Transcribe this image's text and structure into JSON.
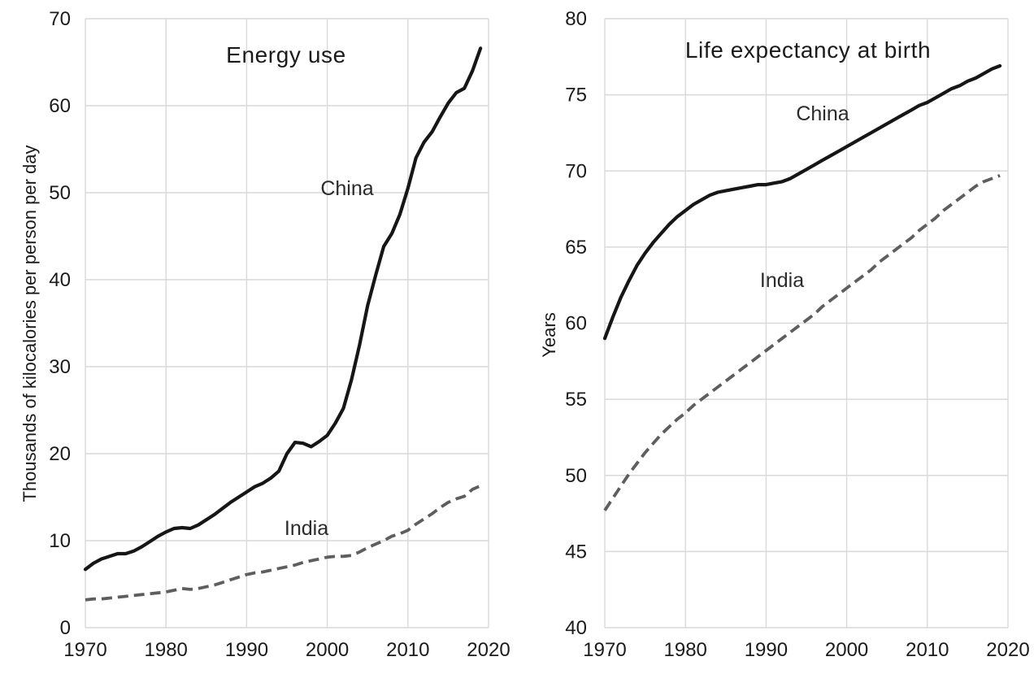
{
  "figure": {
    "background": "#ffffff",
    "grid_color": "#d9d9d9",
    "text_color": "#1b1b1b"
  },
  "chart_data": [
    {
      "id": "energy",
      "type": "line",
      "title": "Energy use",
      "ylabel": "Thousands of kilocalories per person per day",
      "xlabel": "",
      "xlim": [
        1970,
        2020
      ],
      "ylim": [
        0,
        70
      ],
      "x_ticks": [
        "1970",
        "1980",
        "1990",
        "2000",
        "2010",
        "2020"
      ],
      "y_ticks": [
        "0",
        "10",
        "20",
        "30",
        "40",
        "50",
        "60",
        "70"
      ],
      "grid": true,
      "legend_position": "inline-labels",
      "x_years": [
        1970,
        1971,
        1972,
        1973,
        1974,
        1975,
        1976,
        1977,
        1978,
        1979,
        1980,
        1981,
        1982,
        1983,
        1984,
        1985,
        1986,
        1987,
        1988,
        1989,
        1990,
        1991,
        1992,
        1993,
        1994,
        1995,
        1996,
        1997,
        1998,
        1999,
        2000,
        2001,
        2002,
        2003,
        2004,
        2005,
        2006,
        2007,
        2008,
        2009,
        2010,
        2011,
        2012,
        2013,
        2014,
        2015,
        2016,
        2017,
        2018,
        2019
      ],
      "series": [
        {
          "name": "China",
          "line_style": "solid",
          "color": "#161616",
          "values": [
            6.7,
            7.4,
            7.9,
            8.2,
            8.5,
            8.5,
            8.8,
            9.3,
            9.9,
            10.5,
            11.0,
            11.4,
            11.5,
            11.4,
            11.8,
            12.4,
            13.0,
            13.7,
            14.4,
            15.0,
            15.6,
            16.2,
            16.6,
            17.2,
            18.0,
            20.0,
            21.3,
            21.2,
            20.8,
            21.4,
            22.1,
            23.5,
            25.2,
            28.5,
            32.5,
            37.0,
            40.5,
            43.8,
            45.3,
            47.5,
            50.5,
            54.0,
            55.8,
            57.0,
            58.7,
            60.3,
            61.5,
            62.0,
            64.0,
            66.6
          ]
        },
        {
          "name": "India",
          "line_style": "dashed",
          "color": "#5e5e5e",
          "values": [
            3.2,
            3.3,
            3.3,
            3.4,
            3.5,
            3.6,
            3.7,
            3.8,
            3.9,
            4.0,
            4.1,
            4.3,
            4.5,
            4.4,
            4.5,
            4.7,
            4.9,
            5.2,
            5.5,
            5.8,
            6.1,
            6.3,
            6.4,
            6.6,
            6.8,
            7.0,
            7.2,
            7.5,
            7.7,
            7.9,
            8.1,
            8.2,
            8.2,
            8.3,
            8.7,
            9.2,
            9.6,
            10.0,
            10.5,
            10.8,
            11.2,
            11.9,
            12.5,
            13.1,
            13.8,
            14.4,
            14.8,
            15.1,
            15.9,
            16.3
          ]
        }
      ]
    },
    {
      "id": "life-expectancy",
      "type": "line",
      "title": "Life expectancy at birth",
      "ylabel": "Years",
      "xlabel": "",
      "xlim": [
        1970,
        2020
      ],
      "ylim": [
        40,
        80
      ],
      "x_ticks": [
        "1970",
        "1980",
        "1990",
        "2000",
        "2010",
        "2020"
      ],
      "y_ticks": [
        "40",
        "45",
        "50",
        "55",
        "60",
        "65",
        "70",
        "75",
        "80"
      ],
      "grid": true,
      "legend_position": "inline-labels",
      "x_years": [
        1970,
        1971,
        1972,
        1973,
        1974,
        1975,
        1976,
        1977,
        1978,
        1979,
        1980,
        1981,
        1982,
        1983,
        1984,
        1985,
        1986,
        1987,
        1988,
        1989,
        1990,
        1991,
        1992,
        1993,
        1994,
        1995,
        1996,
        1997,
        1998,
        1999,
        2000,
        2001,
        2002,
        2003,
        2004,
        2005,
        2006,
        2007,
        2008,
        2009,
        2010,
        2011,
        2012,
        2013,
        2014,
        2015,
        2016,
        2017,
        2018,
        2019
      ],
      "series": [
        {
          "name": "China",
          "line_style": "solid",
          "color": "#161616",
          "values": [
            59.0,
            60.4,
            61.7,
            62.8,
            63.8,
            64.6,
            65.3,
            65.9,
            66.5,
            67.0,
            67.4,
            67.8,
            68.1,
            68.4,
            68.6,
            68.7,
            68.8,
            68.9,
            69.0,
            69.1,
            69.1,
            69.2,
            69.3,
            69.5,
            69.8,
            70.1,
            70.4,
            70.7,
            71.0,
            71.3,
            71.6,
            71.9,
            72.2,
            72.5,
            72.8,
            73.1,
            73.4,
            73.7,
            74.0,
            74.3,
            74.5,
            74.8,
            75.1,
            75.4,
            75.6,
            75.9,
            76.1,
            76.4,
            76.7,
            76.9
          ]
        },
        {
          "name": "India",
          "line_style": "dashed",
          "color": "#5e5e5e",
          "values": [
            47.7,
            48.5,
            49.3,
            50.1,
            50.8,
            51.5,
            52.1,
            52.7,
            53.2,
            53.7,
            54.1,
            54.6,
            55.0,
            55.4,
            55.8,
            56.2,
            56.6,
            57.0,
            57.4,
            57.8,
            58.2,
            58.6,
            59.0,
            59.4,
            59.8,
            60.2,
            60.6,
            61.1,
            61.5,
            61.9,
            62.3,
            62.7,
            63.1,
            63.5,
            64.0,
            64.4,
            64.8,
            65.2,
            65.6,
            66.1,
            66.5,
            66.9,
            67.4,
            67.8,
            68.2,
            68.6,
            69.0,
            69.3,
            69.5,
            69.7
          ]
        }
      ]
    }
  ]
}
